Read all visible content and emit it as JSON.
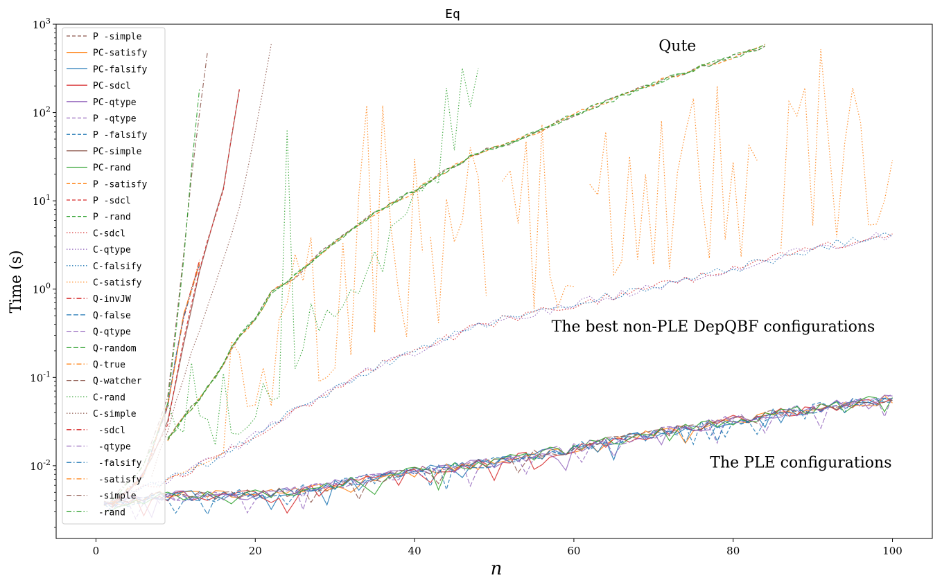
{
  "chart_data": {
    "type": "line",
    "title": "Eq",
    "xlabel": "n",
    "ylabel": "Time (s)",
    "xlim": [
      -5,
      105
    ],
    "ylim": [
      0.0015,
      1000
    ],
    "yscale": "log",
    "x_ticks": [
      "0",
      "20",
      "40",
      "60",
      "80",
      "100"
    ],
    "y_ticks": [
      {
        "base": "10",
        "exp": "-2",
        "value": 0.01
      },
      {
        "base": "10",
        "exp": "-1",
        "value": 0.1
      },
      {
        "base": "10",
        "exp": "0",
        "value": 1
      },
      {
        "base": "10",
        "exp": "1",
        "value": 10
      },
      {
        "base": "10",
        "exp": "2",
        "value": 100
      },
      {
        "base": "10",
        "exp": "3",
        "value": 1000
      }
    ],
    "legend_position": "upper-left",
    "annotations": [
      {
        "text": "Qute",
        "x": 73,
        "y": 500
      },
      {
        "text": "The best non-PLE DepQBF configurations",
        "x": 77.5,
        "y": 0.33
      },
      {
        "text": "The PLE configurations",
        "x": 88.5,
        "y": 0.0095
      }
    ],
    "series": [
      {
        "name": "P -simple",
        "color": "#8c564b",
        "style": "dashed",
        "group": "qute",
        "seed": 1
      },
      {
        "name": "PC-satisfy",
        "color": "#ff7f0e",
        "style": "solid",
        "group": "ple",
        "seed": 2
      },
      {
        "name": "PC-falsify",
        "color": "#1f77b4",
        "style": "solid",
        "group": "ple",
        "seed": 3
      },
      {
        "name": "PC-sdcl",
        "color": "#d62728",
        "style": "solid",
        "group": "ple",
        "seed": 4
      },
      {
        "name": "PC-qtype",
        "color": "#9467bd",
        "style": "solid",
        "group": "ple",
        "seed": 5
      },
      {
        "name": "P -qtype",
        "color": "#9467bd",
        "style": "dashed",
        "group": "ple",
        "seed": 6
      },
      {
        "name": "P -falsify",
        "color": "#1f77b4",
        "style": "dashed",
        "group": "ple",
        "seed": 7
      },
      {
        "name": "PC-simple",
        "color": "#8c564b",
        "style": "solid",
        "group": "steep16",
        "seed": 8
      },
      {
        "name": "PC-rand",
        "color": "#2ca02c",
        "style": "solid",
        "group": "ple",
        "seed": 9
      },
      {
        "name": "P -satisfy",
        "color": "#ff7f0e",
        "style": "dashed",
        "group": "qute",
        "seed": 10
      },
      {
        "name": "P -sdcl",
        "color": "#d62728",
        "style": "dashed",
        "group": "steep16",
        "seed": 11
      },
      {
        "name": "P -rand",
        "color": "#2ca02c",
        "style": "dashed",
        "group": "qute",
        "seed": 12
      },
      {
        "name": "C-sdcl",
        "color": "#d62728",
        "style": "dotted",
        "group": "best",
        "seed": 13
      },
      {
        "name": "C-qtype",
        "color": "#9467bd",
        "style": "dotted",
        "group": "best",
        "seed": 14
      },
      {
        "name": "C-falsify",
        "color": "#1f77b4",
        "style": "dotted",
        "group": "best",
        "seed": 15
      },
      {
        "name": "C-satisfy",
        "color": "#ff7f0e",
        "style": "dotted",
        "group": "erratic",
        "seed": 16
      },
      {
        "name": "Q-invJW",
        "color": "#d62728",
        "style": "dashdot",
        "group": "steep12",
        "seed": 17
      },
      {
        "name": "Q-false",
        "color": "#1f77b4",
        "style": "dashed2",
        "group": "ple",
        "seed": 18
      },
      {
        "name": "Q-qtype",
        "color": "#9467bd",
        "style": "dashed2",
        "group": "ple",
        "seed": 19
      },
      {
        "name": "Q-random",
        "color": "#2ca02c",
        "style": "dashed2",
        "group": "qute",
        "seed": 20
      },
      {
        "name": "Q-true",
        "color": "#ff7f0e",
        "style": "dashdot",
        "group": "steep12",
        "seed": 21
      },
      {
        "name": "Q-watcher",
        "color": "#8c564b",
        "style": "dashed2",
        "group": "ple",
        "seed": 22
      },
      {
        "name": "C-rand",
        "color": "#2ca02c",
        "style": "dotted",
        "group": "rand",
        "seed": 23
      },
      {
        "name": "C-simple",
        "color": "#8c564b",
        "style": "dotted",
        "group": "simple",
        "seed": 24
      },
      {
        "name": " -sdcl",
        "color": "#d62728",
        "style": "dashdot",
        "group": "steep12",
        "seed": 25
      },
      {
        "name": " -qtype",
        "color": "#9467bd",
        "style": "dashdot",
        "group": "steep12",
        "seed": 26
      },
      {
        "name": " -falsify",
        "color": "#1f77b4",
        "style": "dashdot",
        "group": "steep12",
        "seed": 27
      },
      {
        "name": " -satisfy",
        "color": "#ff7f0e",
        "style": "dashdot",
        "group": "steep12",
        "seed": 28
      },
      {
        "name": " -simple",
        "color": "#8c564b",
        "style": "dashdot",
        "group": "steep14",
        "seed": 29
      },
      {
        "name": " -rand",
        "color": "#2ca02c",
        "style": "dashdot",
        "group": "steep13",
        "seed": 30
      }
    ]
  }
}
